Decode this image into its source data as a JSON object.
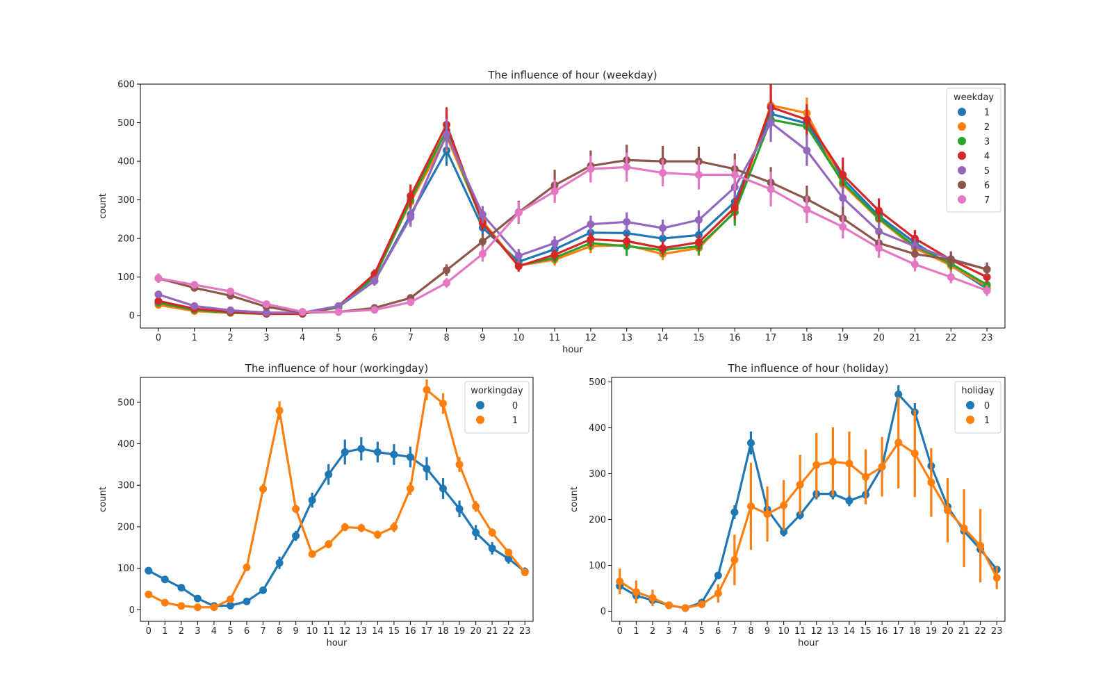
{
  "chart_data": [
    {
      "type": "line",
      "title": "The influence of hour (weekday)",
      "xlabel": "hour",
      "ylabel": "count",
      "x": [
        "0",
        "1",
        "2",
        "3",
        "4",
        "5",
        "6",
        "7",
        "8",
        "9",
        "10",
        "11",
        "12",
        "13",
        "14",
        "15",
        "16",
        "17",
        "18",
        "19",
        "20",
        "21",
        "22",
        "23"
      ],
      "yticks": [
        0,
        100,
        200,
        300,
        400,
        500,
        600
      ],
      "ylim": [
        -32,
        600
      ],
      "grid": false,
      "legend": {
        "title": "weekday",
        "placement": "top-right"
      },
      "series": [
        {
          "name": "1",
          "color": "#1f77b4",
          "values": [
            37,
            18,
            10,
            6,
            6,
            23,
            90,
            262,
            428,
            228,
            140,
            172,
            215,
            214,
            200,
            209,
            295,
            523,
            498,
            355,
            258,
            189,
            130,
            70
          ],
          "err": [
            8,
            6,
            5,
            4,
            4,
            6,
            12,
            25,
            40,
            20,
            15,
            20,
            20,
            20,
            20,
            25,
            30,
            40,
            35,
            30,
            25,
            20,
            18,
            15
          ]
        },
        {
          "name": "2",
          "color": "#ff7f0e",
          "values": [
            28,
            12,
            7,
            5,
            5,
            22,
            100,
            295,
            465,
            245,
            130,
            145,
            180,
            183,
            160,
            175,
            270,
            545,
            525,
            340,
            250,
            175,
            130,
            75
          ],
          "err": [
            6,
            5,
            4,
            3,
            3,
            6,
            10,
            25,
            40,
            20,
            12,
            15,
            18,
            18,
            16,
            20,
            28,
            55,
            40,
            30,
            25,
            18,
            16,
            14
          ]
        },
        {
          "name": "3",
          "color": "#2ca02c",
          "values": [
            33,
            15,
            8,
            5,
            5,
            22,
            100,
            300,
            480,
            240,
            130,
            150,
            188,
            180,
            170,
            180,
            268,
            508,
            490,
            345,
            252,
            180,
            135,
            80
          ],
          "err": [
            6,
            5,
            4,
            3,
            3,
            6,
            10,
            25,
            40,
            20,
            12,
            15,
            18,
            25,
            18,
            22,
            35,
            40,
            35,
            30,
            25,
            18,
            16,
            14
          ]
        },
        {
          "name": "4",
          "color": "#d62728",
          "values": [
            38,
            18,
            10,
            5,
            5,
            25,
            108,
            310,
            495,
            240,
            128,
            158,
            198,
            193,
            175,
            190,
            280,
            540,
            508,
            365,
            272,
            200,
            145,
            100
          ],
          "err": [
            7,
            6,
            5,
            3,
            3,
            6,
            12,
            30,
            45,
            20,
            14,
            16,
            20,
            18,
            18,
            20,
            30,
            60,
            40,
            45,
            32,
            22,
            18,
            16
          ]
        },
        {
          "name": "5",
          "color": "#9467bd",
          "values": [
            55,
            25,
            14,
            8,
            8,
            25,
            90,
            255,
            470,
            262,
            155,
            188,
            237,
            243,
            227,
            248,
            333,
            500,
            428,
            305,
            218,
            180,
            147,
            120
          ],
          "err": [
            10,
            8,
            6,
            4,
            4,
            6,
            12,
            25,
            40,
            22,
            18,
            18,
            22,
            25,
            22,
            25,
            28,
            50,
            40,
            30,
            25,
            20,
            20,
            15
          ]
        },
        {
          "name": "6",
          "color": "#8c564b",
          "values": [
            97,
            72,
            52,
            23,
            8,
            10,
            20,
            46,
            118,
            192,
            268,
            338,
            388,
            403,
            400,
            400,
            380,
            345,
            302,
            252,
            188,
            160,
            145,
            120
          ],
          "err": [
            12,
            8,
            8,
            5,
            3,
            3,
            5,
            8,
            15,
            20,
            30,
            40,
            40,
            40,
            40,
            38,
            40,
            40,
            35,
            30,
            25,
            20,
            20,
            18
          ]
        },
        {
          "name": "7",
          "color": "#e377c2",
          "values": [
            97,
            80,
            63,
            30,
            10,
            10,
            15,
            35,
            85,
            160,
            267,
            322,
            380,
            385,
            370,
            365,
            365,
            328,
            275,
            230,
            175,
            133,
            100,
            65
          ],
          "err": [
            12,
            8,
            8,
            5,
            3,
            3,
            5,
            8,
            12,
            20,
            28,
            30,
            35,
            38,
            35,
            38,
            40,
            45,
            35,
            30,
            25,
            18,
            16,
            14
          ]
        }
      ]
    },
    {
      "type": "line",
      "title": "The influence of hour (workingday)",
      "xlabel": "hour",
      "ylabel": "count",
      "x": [
        "0",
        "1",
        "2",
        "3",
        "4",
        "5",
        "6",
        "7",
        "8",
        "9",
        "10",
        "11",
        "12",
        "13",
        "14",
        "15",
        "16",
        "17",
        "18",
        "19",
        "20",
        "21",
        "22",
        "23"
      ],
      "yticks": [
        0,
        100,
        200,
        300,
        400,
        500
      ],
      "ylim": [
        -28,
        560
      ],
      "grid": false,
      "legend": {
        "title": "workingday",
        "placement": "top-right"
      },
      "series": [
        {
          "name": "0",
          "color": "#1f77b4",
          "values": [
            94,
            73,
            53,
            27,
            9,
            10,
            20,
            47,
            113,
            178,
            264,
            326,
            380,
            388,
            380,
            374,
            368,
            340,
            292,
            243,
            186,
            148,
            123,
            92
          ],
          "err": [
            5,
            4,
            4,
            3,
            2,
            2,
            3,
            5,
            15,
            12,
            18,
            25,
            30,
            28,
            25,
            25,
            25,
            28,
            25,
            20,
            18,
            15,
            12,
            10
          ]
        },
        {
          "name": "1",
          "color": "#ff7f0e",
          "values": [
            37,
            17,
            9,
            6,
            6,
            25,
            102,
            291,
            480,
            243,
            134,
            158,
            199,
            197,
            181,
            199,
            292,
            530,
            497,
            350,
            249,
            186,
            138,
            90
          ],
          "err": [
            4,
            3,
            2,
            2,
            2,
            3,
            6,
            12,
            22,
            10,
            8,
            10,
            10,
            10,
            10,
            12,
            15,
            25,
            25,
            18,
            13,
            10,
            9,
            8
          ]
        }
      ]
    },
    {
      "type": "line",
      "title": "The influence of hour (holiday)",
      "xlabel": "hour",
      "ylabel": "count",
      "x": [
        "0",
        "1",
        "2",
        "3",
        "4",
        "5",
        "6",
        "7",
        "8",
        "9",
        "10",
        "11",
        "12",
        "13",
        "14",
        "15",
        "16",
        "17",
        "18",
        "19",
        "20",
        "21",
        "22",
        "23"
      ],
      "yticks": [
        0,
        100,
        200,
        300,
        400,
        500
      ],
      "ylim": [
        -22,
        510
      ],
      "grid": false,
      "legend": {
        "title": "holiday",
        "placement": "top-right"
      },
      "series": [
        {
          "name": "0",
          "color": "#1f77b4",
          "values": [
            55,
            34,
            24,
            13,
            7,
            19,
            78,
            216,
            367,
            222,
            173,
            210,
            256,
            256,
            241,
            254,
            315,
            473,
            434,
            317,
            228,
            175,
            135,
            91
          ],
          "err": [
            5,
            4,
            3,
            2,
            2,
            3,
            5,
            15,
            25,
            10,
            10,
            10,
            12,
            12,
            12,
            12,
            15,
            20,
            20,
            15,
            12,
            10,
            10,
            8
          ]
        },
        {
          "name": "1",
          "color": "#ff7f0e",
          "values": [
            65,
            42,
            29,
            13,
            7,
            15,
            39,
            112,
            229,
            212,
            231,
            276,
            319,
            326,
            322,
            293,
            315,
            368,
            344,
            281,
            220,
            181,
            143,
            73
          ],
          "err": [
            28,
            25,
            18,
            5,
            3,
            6,
            20,
            55,
            95,
            60,
            55,
            65,
            70,
            75,
            70,
            60,
            65,
            100,
            95,
            75,
            70,
            85,
            80,
            25
          ]
        }
      ]
    }
  ]
}
